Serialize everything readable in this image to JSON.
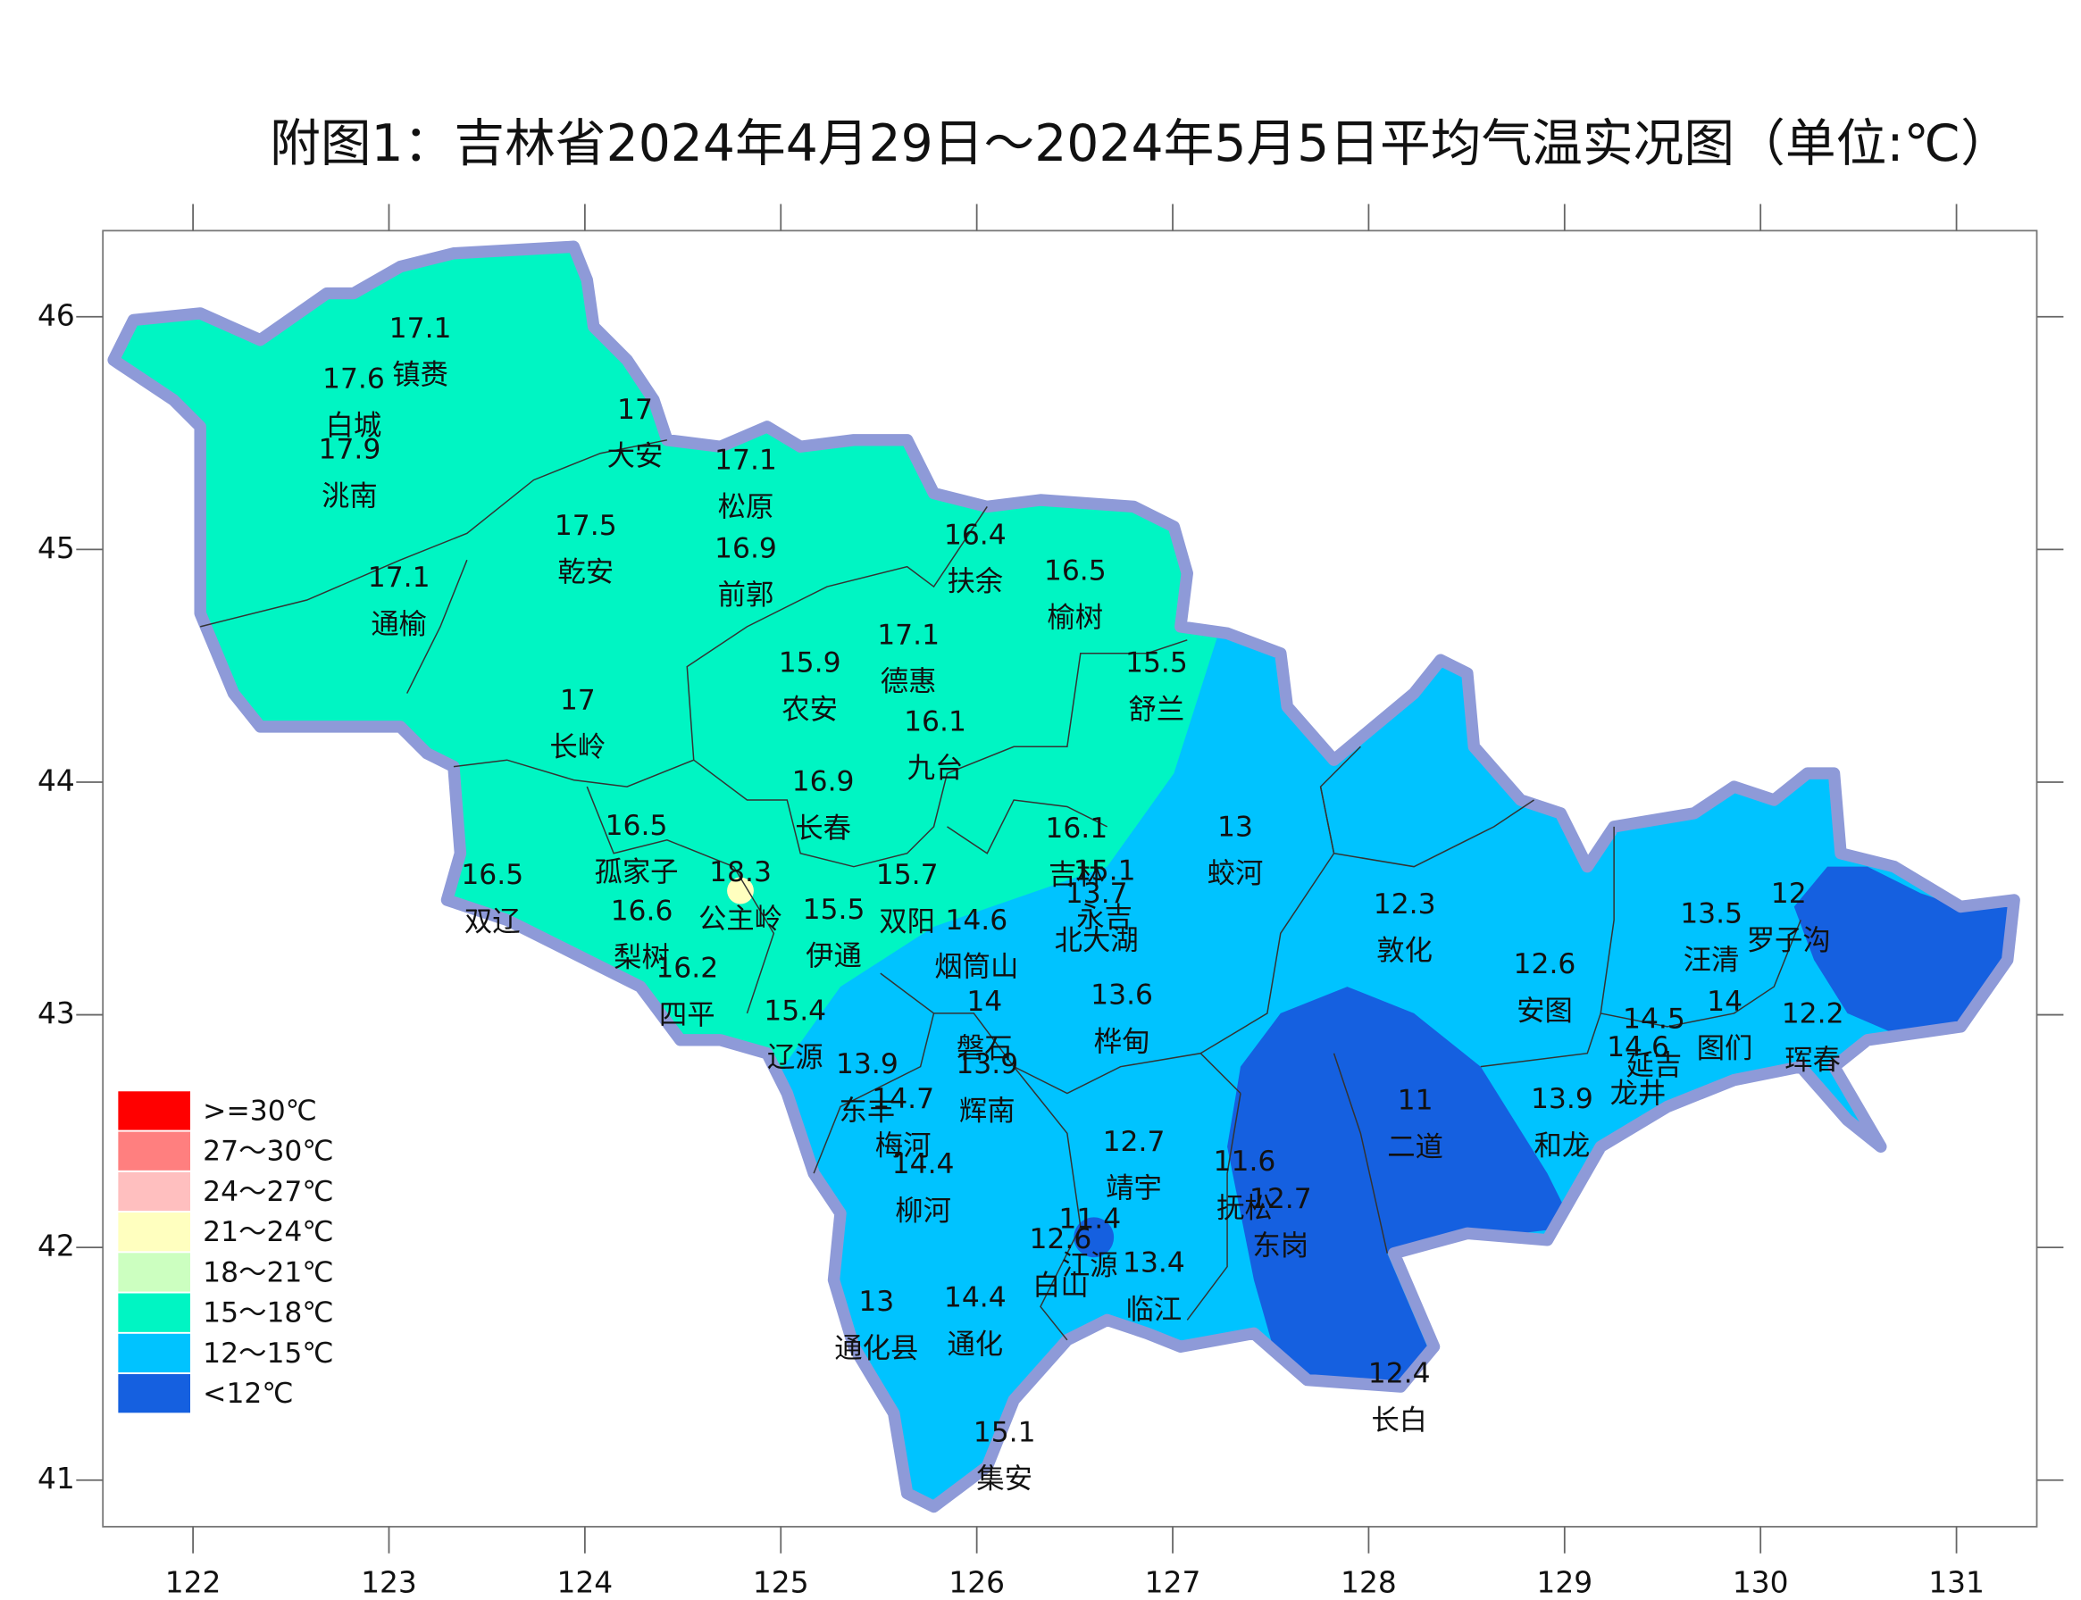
{
  "title": "附图1：吉林省2024年4月29日～2024年5月5日平均气温实况图（单位:℃）",
  "map": {
    "xlim": [
      121.54,
      131.41
    ],
    "ylim": [
      40.8,
      46.37
    ],
    "xticks": [
      122,
      123,
      124,
      125,
      126,
      127,
      128,
      129,
      130,
      131
    ],
    "yticks": [
      41,
      42,
      43,
      44,
      45,
      46
    ]
  },
  "legend": [
    {
      "label": ">=30℃",
      "color": "#ff0000"
    },
    {
      "label": "27～30℃",
      "color": "#ff7f7f"
    },
    {
      "label": "24～27℃",
      "color": "#ffbfbf"
    },
    {
      "label": "21～24℃",
      "color": "#ffffbf"
    },
    {
      "label": "18～21℃",
      "color": "#ccffc0"
    },
    {
      "label": "15～18℃",
      "color": "#00f5c3"
    },
    {
      "label": "12～15℃",
      "color": "#00c3ff"
    },
    {
      "label": "<12℃",
      "color": "#1560e0"
    }
  ],
  "stations": [
    {
      "name": "镇赉",
      "value": 17.1
    },
    {
      "name": "白城",
      "value": 17.6
    },
    {
      "name": "洮南",
      "value": 17.9
    },
    {
      "name": "大安",
      "value": 17
    },
    {
      "name": "松原",
      "value": 17.1
    },
    {
      "name": "乾安",
      "value": 17.5
    },
    {
      "name": "前郭",
      "value": 16.9
    },
    {
      "name": "通榆",
      "value": 17.1
    },
    {
      "name": "扶余",
      "value": 16.4
    },
    {
      "name": "榆树",
      "value": 16.5
    },
    {
      "name": "德惠",
      "value": 17.1
    },
    {
      "name": "农安",
      "value": 15.9
    },
    {
      "name": "舒兰",
      "value": 15.5
    },
    {
      "name": "长岭",
      "value": 17
    },
    {
      "name": "九台",
      "value": 16.1
    },
    {
      "name": "长春",
      "value": 16.9
    },
    {
      "name": "蛟河",
      "value": 13
    },
    {
      "name": "吉林",
      "value": 16.1
    },
    {
      "name": "永吉",
      "value": 15.1
    },
    {
      "name": "孤家子",
      "value": 16.5
    },
    {
      "name": "双辽",
      "value": 16.5
    },
    {
      "name": "公主岭",
      "value": 18.3
    },
    {
      "name": "双阳",
      "value": 15.7
    },
    {
      "name": "梨树",
      "value": 16.6
    },
    {
      "name": "伊通",
      "value": 15.5
    },
    {
      "name": "北大湖",
      "value": 13.7
    },
    {
      "name": "烟筒山",
      "value": 14.6
    },
    {
      "name": "敦化",
      "value": 12.3
    },
    {
      "name": "汪清",
      "value": 13.5
    },
    {
      "name": "罗子沟",
      "value": 12
    },
    {
      "name": "四平",
      "value": 16.2
    },
    {
      "name": "安图",
      "value": 12.6
    },
    {
      "name": "辽源",
      "value": 15.4
    },
    {
      "name": "磐石",
      "value": 14
    },
    {
      "name": "桦甸",
      "value": 13.6
    },
    {
      "name": "图们",
      "value": 14
    },
    {
      "name": "延吉",
      "value": 14.5
    },
    {
      "name": "珲春",
      "value": 12.2
    },
    {
      "name": "龙井",
      "value": 14.6
    },
    {
      "name": "东丰",
      "value": 13.9
    },
    {
      "name": "辉南",
      "value": 13.9
    },
    {
      "name": "二道",
      "value": 11
    },
    {
      "name": "和龙",
      "value": 13.9
    },
    {
      "name": "梅河",
      "value": 14.7
    },
    {
      "name": "靖宇",
      "value": 12.7
    },
    {
      "name": "抚松",
      "value": 11.6
    },
    {
      "name": "柳河",
      "value": 14.4
    },
    {
      "name": "东岗",
      "value": 12.7
    },
    {
      "name": "江源",
      "value": 11.4
    },
    {
      "name": "白山",
      "value": 12.6
    },
    {
      "name": "临江",
      "value": 13.4
    },
    {
      "name": "通化县",
      "value": 13
    },
    {
      "name": "通化",
      "value": 14.4
    },
    {
      "name": "长白",
      "value": 12.4
    },
    {
      "name": "集安",
      "value": 15.1
    }
  ]
}
